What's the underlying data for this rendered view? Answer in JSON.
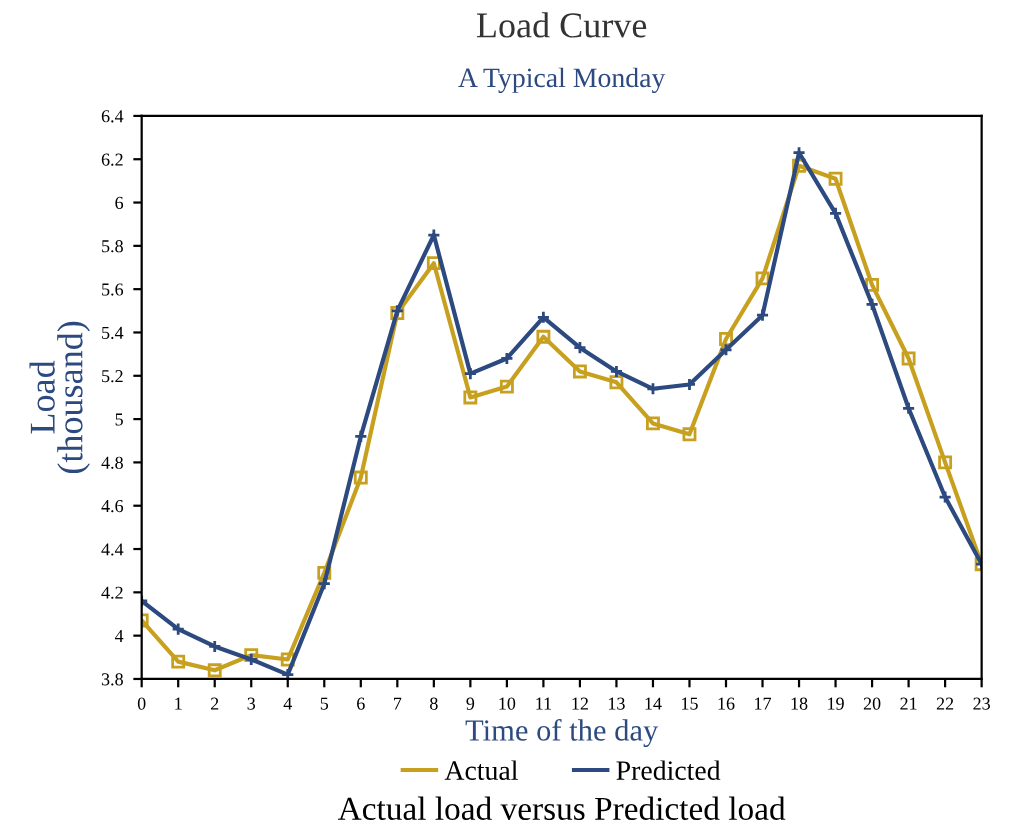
{
  "chart_data": {
    "type": "line",
    "title": "Load Curve",
    "subtitle": "A Typical Monday",
    "xlabel": "Time of the day",
    "ylabel": "Load\n(thousand)",
    "x": [
      0,
      1,
      2,
      3,
      4,
      5,
      6,
      7,
      8,
      9,
      10,
      11,
      12,
      13,
      14,
      15,
      16,
      17,
      18,
      19,
      20,
      21,
      22,
      23
    ],
    "series": [
      {
        "name": "Actual",
        "color": "#c8a020",
        "marker": "square",
        "values": [
          4.07,
          3.88,
          3.84,
          3.91,
          3.89,
          4.29,
          4.73,
          5.49,
          5.72,
          5.1,
          5.15,
          5.38,
          5.22,
          5.17,
          4.98,
          4.93,
          5.37,
          5.65,
          6.17,
          6.11,
          5.62,
          5.28,
          4.8,
          4.33
        ]
      },
      {
        "name": "Predicted",
        "color": "#2c4a80",
        "marker": "cross",
        "values": [
          4.16,
          4.03,
          3.95,
          3.89,
          3.82,
          4.24,
          4.92,
          5.5,
          5.85,
          5.21,
          5.28,
          5.47,
          5.33,
          5.22,
          5.14,
          5.16,
          5.32,
          5.48,
          6.23,
          5.95,
          5.53,
          5.05,
          4.64,
          4.33
        ]
      }
    ],
    "xlim": [
      0,
      23
    ],
    "xticks": [
      0,
      1,
      2,
      3,
      4,
      5,
      6,
      7,
      8,
      9,
      10,
      11,
      12,
      13,
      14,
      15,
      16,
      17,
      18,
      19,
      20,
      21,
      22,
      23
    ],
    "ylim": [
      3.8,
      6.4
    ],
    "yticks": [
      3.8,
      4,
      4.2,
      4.4,
      4.6,
      4.8,
      5,
      5.2,
      5.4,
      5.6,
      5.8,
      6,
      6.2,
      6.4
    ],
    "grid": false,
    "legend": "bottom",
    "line_style": "solid",
    "annotations": [
      "Actual load versus Predicted load"
    ]
  }
}
